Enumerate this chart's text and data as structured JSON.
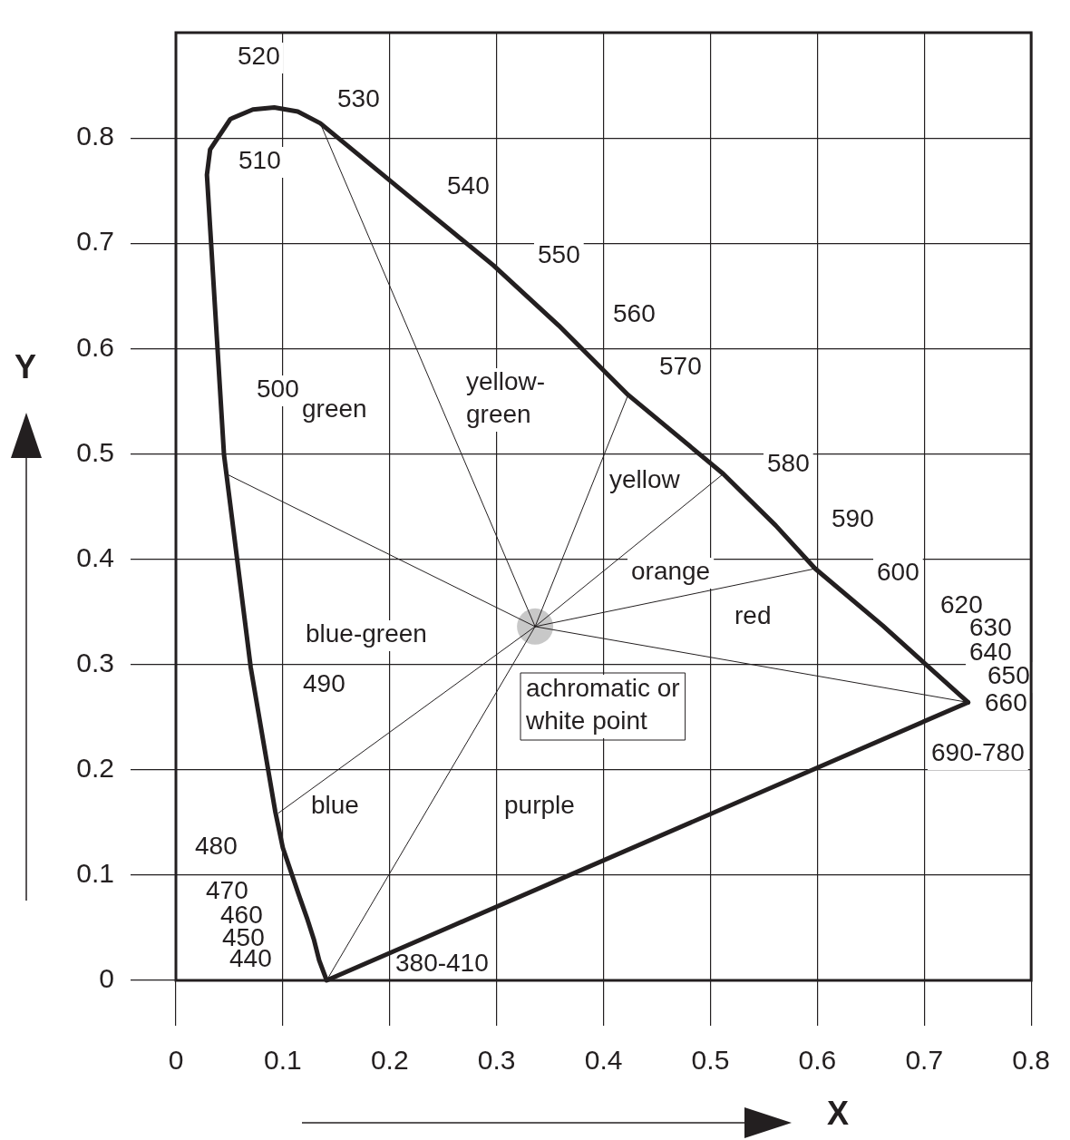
{
  "chart_data": {
    "type": "line",
    "xlabel": "X",
    "ylabel": "Y",
    "xlim": [
      0,
      0.8
    ],
    "xticks": [
      0,
      0.1,
      0.2,
      0.3,
      0.4,
      0.5,
      0.6,
      0.7,
      0.8
    ],
    "ylim": [
      0,
      0.9
    ],
    "yticks": [
      0,
      0.1,
      0.2,
      0.3,
      0.4,
      0.5,
      0.6,
      0.7,
      0.8
    ],
    "grid": true,
    "legend": false,
    "series": [
      {
        "type": "scatter",
        "marker": "circle",
        "color": "#c8c8c8",
        "x": [
          0.336
        ],
        "values": [
          0.336
        ]
      },
      {
        "color": "#231f20",
        "x": [
          0.141,
          0.134,
          0.129,
          0.123,
          0.115,
          0.1,
          0.093,
          0.07,
          0.045,
          0.029,
          0.032,
          0.051,
          0.072,
          0.092,
          0.114,
          0.135,
          0.226,
          0.297,
          0.358,
          0.423,
          0.512,
          0.561,
          0.598,
          0.661,
          0.741
        ],
        "values": [
          0,
          0.019,
          0.039,
          0.058,
          0.081,
          0.126,
          0.16,
          0.297,
          0.499,
          0.765,
          0.789,
          0.818,
          0.827,
          0.829,
          0.825,
          0.814,
          0.738,
          0.679,
          0.622,
          0.556,
          0.481,
          0.432,
          0.391,
          0.337,
          0.264
        ]
      },
      {
        "color": "#231f20",
        "x": [
          0.336,
          0.135
        ],
        "values": [
          0.336,
          0.814
        ]
      },
      {
        "color": "#231f20",
        "x": [
          0.336,
          0.423
        ],
        "values": [
          0.336,
          0.556
        ]
      },
      {
        "color": "#231f20",
        "x": [
          0.336,
          0.512
        ],
        "values": [
          0.336,
          0.481
        ]
      },
      {
        "color": "#231f20",
        "x": [
          0.336,
          0.598
        ],
        "values": [
          0.336,
          0.391
        ]
      },
      {
        "color": "#231f20",
        "x": [
          0.336,
          0.741
        ],
        "values": [
          0.336,
          0.264
        ]
      },
      {
        "color": "#231f20",
        "x": [
          0.336,
          0.141
        ],
        "values": [
          0.336,
          0
        ]
      },
      {
        "color": "#231f20",
        "x": [
          0.336,
          0.096
        ],
        "values": [
          0.336,
          0.159
        ]
      },
      {
        "color": "#231f20",
        "x": [
          0.336,
          0.049
        ],
        "values": [
          0.336,
          0.48
        ]
      }
    ],
    "annotations": [
      "520",
      "530",
      "510",
      "540",
      "550",
      "560",
      "570",
      "500",
      "580",
      "590",
      "600",
      "620",
      "630",
      "640",
      "650",
      "660",
      "690-780",
      "490",
      "480",
      "470",
      "460",
      "450",
      "440",
      "380-410",
      "green",
      "yellow-\ngreen",
      "yellow",
      "orange",
      "red",
      "blue-green",
      "blue",
      "purple",
      "achromatic or\nwhite point"
    ]
  }
}
